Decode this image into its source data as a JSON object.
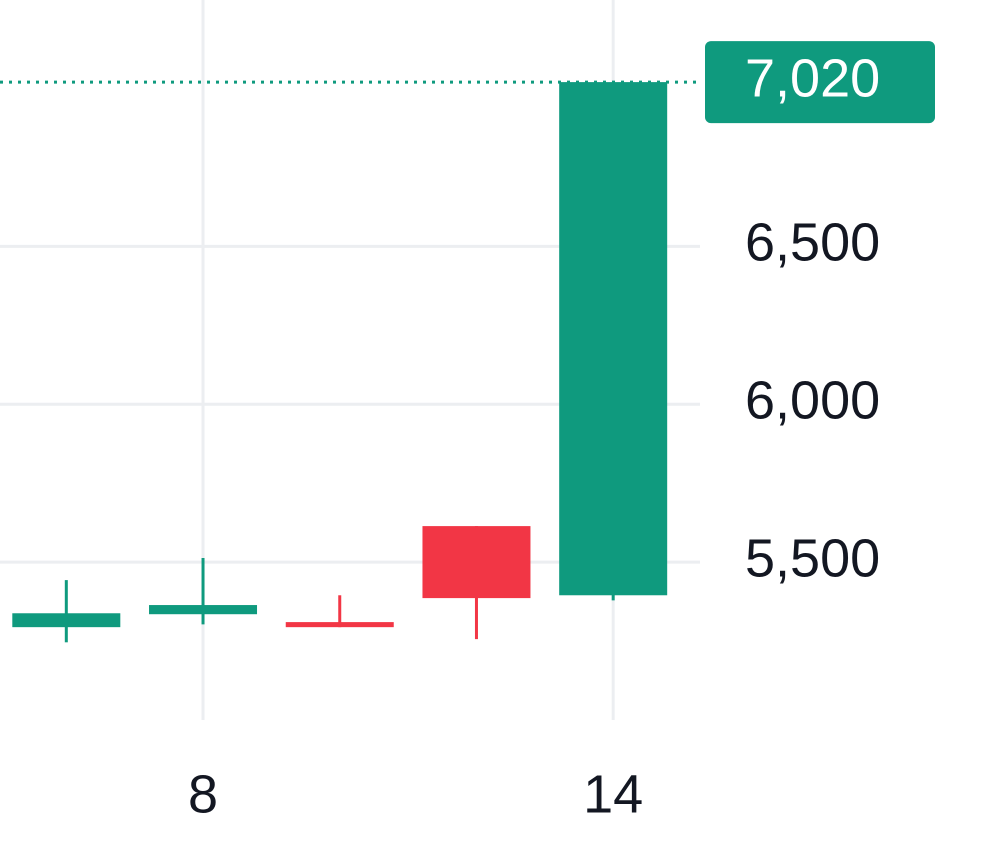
{
  "chart_data": {
    "type": "candlestick",
    "x": [
      6,
      8,
      10,
      12,
      14
    ],
    "open": [
      5294,
      5335,
      5310,
      5614,
      5395
    ],
    "high": [
      5443,
      5513,
      5395,
      5614,
      7020
    ],
    "low": [
      5246,
      5303,
      5294,
      5256,
      5379
    ],
    "close": [
      5338,
      5364,
      5294,
      5386,
      7020
    ],
    "up_color": "#0f9a7e",
    "down_color": "#f23645",
    "xlim": [
      5.03,
      15.27
    ],
    "xticks": [
      8,
      14
    ],
    "ylim": [
      5000,
      7280
    ],
    "yticks": [
      {
        "value": 5500,
        "label": "5,500"
      },
      {
        "value": 6000,
        "label": "6,000"
      },
      {
        "value": 6500,
        "label": "6,500"
      }
    ],
    "grid": true,
    "last_price": {
      "value": 7020,
      "label": "7,020"
    }
  }
}
